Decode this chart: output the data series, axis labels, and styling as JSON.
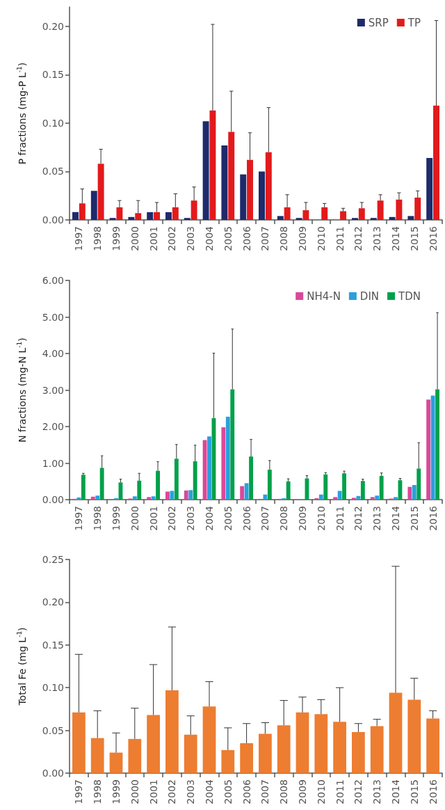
{
  "chart_data": [
    {
      "type": "bar",
      "ylabel": "P fractions (mg-P L$^{-1}$)",
      "categories": [
        "1997",
        "1998",
        "1999",
        "2000",
        "2001",
        "2002",
        "2003",
        "2004",
        "2005",
        "2006",
        "2007",
        "2008",
        "2009",
        "2010",
        "2011",
        "2012",
        "2013",
        "2014",
        "2015",
        "2016"
      ],
      "ylim": [
        0,
        0.22
      ],
      "yticks": [
        {
          "value": 0,
          "label": "0.00"
        },
        {
          "value": 0.05,
          "label": "0.05"
        },
        {
          "value": 0.1,
          "label": "0.10"
        },
        {
          "value": 0.15,
          "label": "0.15"
        },
        {
          "value": 0.2,
          "label": "0.20"
        }
      ],
      "grid": false,
      "legend": "top right",
      "series": [
        {
          "name": "SRP",
          "color": "#1f2a6b",
          "values": [
            0.008,
            0.03,
            0.002,
            0.003,
            0.008,
            0.008,
            0.002,
            0.102,
            0.077,
            0.047,
            0.05,
            0.004,
            0.002,
            0,
            0,
            0.002,
            0.002,
            0.003,
            0.004,
            0.064
          ]
        },
        {
          "name": "TP",
          "color": "#e31a1c",
          "values": [
            0.017,
            0.058,
            0.013,
            0.007,
            0.008,
            0.013,
            0.02,
            0.113,
            0.091,
            0.062,
            0.07,
            0.013,
            0.01,
            0.013,
            0.009,
            0.012,
            0.02,
            0.021,
            0.023,
            0.118
          ],
          "errors": [
            [
              0.017,
              0.032
            ],
            [
              0.058,
              0.073
            ],
            [
              0.013,
              0.02
            ],
            [
              0.007,
              0.02
            ],
            [
              0.008,
              0.018
            ],
            [
              0.013,
              0.027
            ],
            [
              0.02,
              0.034
            ],
            [
              0.113,
              0.202
            ],
            [
              0.091,
              0.133
            ],
            [
              0.062,
              0.09
            ],
            [
              0.07,
              0.116
            ],
            [
              0.013,
              0.026
            ],
            [
              0.01,
              0.018
            ],
            [
              0.013,
              0.017
            ],
            [
              0.009,
              0.012
            ],
            [
              0.012,
              0.018
            ],
            [
              0.02,
              0.026
            ],
            [
              0.021,
              0.028
            ],
            [
              0.023,
              0.03
            ],
            [
              0.118,
              0.206
            ]
          ]
        }
      ]
    },
    {
      "type": "bar",
      "ylabel": "N fractions (mg-N L$^{-1}$)",
      "categories": [
        "1997",
        "1998",
        "1999",
        "2000",
        "2001",
        "2002",
        "2003",
        "2004",
        "2005",
        "2006",
        "2007",
        "2008",
        "2009",
        "2010",
        "2011",
        "2012",
        "2013",
        "2014",
        "2015",
        "2016"
      ],
      "ylim": [
        0,
        6
      ],
      "yticks": [
        {
          "value": 0,
          "label": "0.00"
        },
        {
          "value": 1,
          "label": "1.00"
        },
        {
          "value": 2,
          "label": "2.00"
        },
        {
          "value": 3,
          "label": "3.00"
        },
        {
          "value": 4,
          "label": "4.00"
        },
        {
          "value": 5,
          "label": "5.00"
        },
        {
          "value": 6,
          "label": "6.00"
        }
      ],
      "grid": false,
      "legend": "top right",
      "series": [
        {
          "name": "NH4-N",
          "color": "#d9489a",
          "values": [
            0.02,
            0.08,
            0.01,
            0.03,
            0.07,
            0.22,
            0.25,
            1.63,
            1.98,
            0.37,
            0.02,
            0.02,
            0.01,
            0.04,
            0.07,
            0.05,
            0.07,
            0.03,
            0.35,
            2.74
          ]
        },
        {
          "name": "DIN",
          "color": "#2aa0dc",
          "values": [
            0.06,
            0.11,
            0.04,
            0.09,
            0.09,
            0.24,
            0.26,
            1.73,
            2.27,
            0.45,
            0.14,
            0.04,
            0.01,
            0.14,
            0.24,
            0.1,
            0.11,
            0.07,
            0.4,
            2.85
          ]
        },
        {
          "name": "TDN",
          "color": "#00a14b",
          "values": [
            0.68,
            0.87,
            0.47,
            0.52,
            0.79,
            1.12,
            1.05,
            2.23,
            3.02,
            1.18,
            0.82,
            0.5,
            0.58,
            0.69,
            0.72,
            0.51,
            0.65,
            0.53,
            0.85,
            3.02
          ],
          "errors": [
            [
              0.68,
              0.72
            ],
            [
              0.87,
              1.2
            ],
            [
              0.47,
              0.56
            ],
            [
              0.52,
              0.72
            ],
            [
              0.79,
              1.04
            ],
            [
              1.12,
              1.51
            ],
            [
              1.05,
              1.49
            ],
            [
              2.23,
              4.01
            ],
            [
              3.02,
              4.67
            ],
            [
              1.18,
              1.65
            ],
            [
              0.82,
              1.07
            ],
            [
              0.5,
              0.57
            ],
            [
              0.58,
              0.66
            ],
            [
              0.69,
              0.74
            ],
            [
              0.72,
              0.78
            ],
            [
              0.51,
              0.56
            ],
            [
              0.65,
              0.73
            ],
            [
              0.53,
              0.58
            ],
            [
              0.85,
              1.56
            ],
            [
              3.02,
              5.12
            ]
          ]
        }
      ]
    },
    {
      "type": "bar",
      "ylabel": "Total Fe (mg L$^{-1}$)",
      "categories": [
        "1997",
        "1998",
        "1999",
        "2000",
        "2001",
        "2002",
        "2003",
        "2004",
        "2005",
        "2006",
        "2007",
        "2008",
        "2009",
        "2010",
        "2011",
        "2012",
        "2013",
        "2014",
        "2015",
        "2016"
      ],
      "ylim": [
        0,
        0.25
      ],
      "yticks": [
        {
          "value": 0,
          "label": "0.00"
        },
        {
          "value": 0.05,
          "label": "0.05"
        },
        {
          "value": 0.1,
          "label": "0.10"
        },
        {
          "value": 0.15,
          "label": "0.15"
        },
        {
          "value": 0.2,
          "label": "0.20"
        },
        {
          "value": 0.25,
          "label": "0.25"
        }
      ],
      "grid": false,
      "series": [
        {
          "color": "#ed7d31",
          "values": [
            0.071,
            0.041,
            0.024,
            0.04,
            0.068,
            0.097,
            0.045,
            0.078,
            0.027,
            0.035,
            0.046,
            0.056,
            0.071,
            0.069,
            0.06,
            0.048,
            0.055,
            0.094,
            0.086,
            0.064
          ],
          "errors": [
            [
              0.071,
              0.139
            ],
            [
              0.041,
              0.073
            ],
            [
              0.024,
              0.047
            ],
            [
              0.04,
              0.076
            ],
            [
              0.068,
              0.127
            ],
            [
              0.097,
              0.171
            ],
            [
              0.045,
              0.067
            ],
            [
              0.078,
              0.107
            ],
            [
              0.027,
              0.053
            ],
            [
              0.035,
              0.058
            ],
            [
              0.046,
              0.059
            ],
            [
              0.056,
              0.085
            ],
            [
              0.071,
              0.089
            ],
            [
              0.069,
              0.086
            ],
            [
              0.06,
              0.1
            ],
            [
              0.048,
              0.058
            ],
            [
              0.055,
              0.063
            ],
            [
              0.094,
              0.242
            ],
            [
              0.086,
              0.111
            ],
            [
              0.064,
              0.073
            ]
          ]
        }
      ]
    }
  ]
}
